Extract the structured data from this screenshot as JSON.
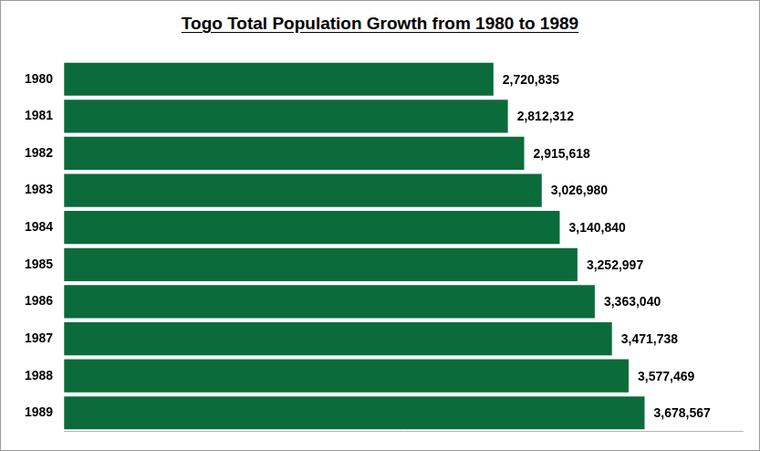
{
  "chart_data": {
    "type": "bar",
    "title": "Togo Total Population Growth from 1980 to 1989",
    "orientation": "horizontal",
    "categories": [
      "1980",
      "1981",
      "1982",
      "1983",
      "1984",
      "1985",
      "1986",
      "1987",
      "1988",
      "1989"
    ],
    "values": [
      2720835,
      2812312,
      2915618,
      3026980,
      3140840,
      3252997,
      3363040,
      3471738,
      3577469,
      3678567
    ],
    "value_labels": [
      "2,720,835",
      "2,812,312",
      "2,915,618",
      "3,026,980",
      "3,140,840",
      "3,252,997",
      "3,363,040",
      "3,471,738",
      "3,577,469",
      "3,678,567"
    ],
    "color": "#0b6b3b",
    "xlim": [
      0,
      4300000
    ],
    "grid": false,
    "data_labels": true,
    "tick_labels": "y"
  }
}
